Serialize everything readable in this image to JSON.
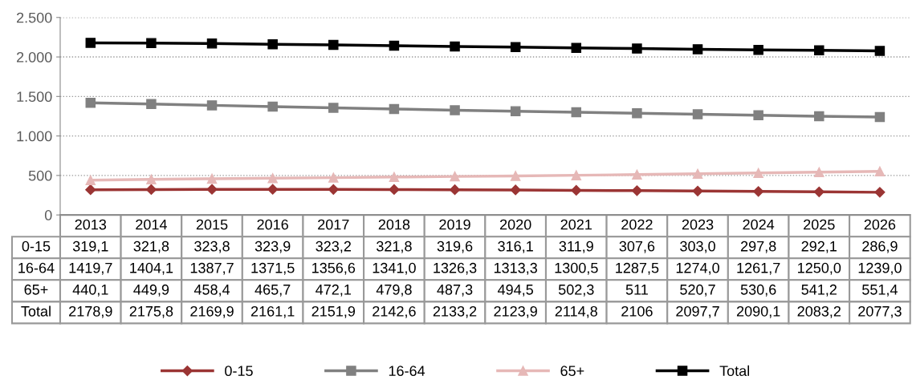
{
  "chart_data": {
    "type": "line",
    "categories": [
      "2013",
      "2014",
      "2015",
      "2016",
      "2017",
      "2018",
      "2019",
      "2020",
      "2021",
      "2022",
      "2023",
      "2024",
      "2025",
      "2026"
    ],
    "series": [
      {
        "name": "0-15",
        "color": "#9b3534",
        "marker": "diamond",
        "values": [
          319.1,
          321.8,
          323.8,
          323.9,
          323.2,
          321.8,
          319.6,
          316.1,
          311.9,
          307.6,
          303.0,
          297.8,
          292.1,
          286.9
        ],
        "value_labels": [
          "319,1",
          "321,8",
          "323,8",
          "323,9",
          "323,2",
          "321,8",
          "319,6",
          "316,1",
          "311,9",
          "307,6",
          "303,0",
          "297,8",
          "292,1",
          "286,9"
        ]
      },
      {
        "name": "16-64",
        "color": "#808080",
        "marker": "square",
        "values": [
          1419.7,
          1404.1,
          1387.7,
          1371.5,
          1356.6,
          1341.0,
          1326.3,
          1313.3,
          1300.5,
          1287.5,
          1274.0,
          1261.7,
          1250.0,
          1239.0
        ],
        "value_labels": [
          "1419,7",
          "1404,1",
          "1387,7",
          "1371,5",
          "1356,6",
          "1341,0",
          "1326,3",
          "1313,3",
          "1300,5",
          "1287,5",
          "1274,0",
          "1261,7",
          "1250,0",
          "1239,0"
        ]
      },
      {
        "name": "65+",
        "color": "#e6b8b7",
        "marker": "triangle",
        "values": [
          440.1,
          449.9,
          458.4,
          465.7,
          472.1,
          479.8,
          487.3,
          494.5,
          502.3,
          511,
          520.7,
          530.6,
          541.2,
          551.4
        ],
        "value_labels": [
          "440,1",
          "449,9",
          "458,4",
          "465,7",
          "472,1",
          "479,8",
          "487,3",
          "494,5",
          "502,3",
          "511",
          "520,7",
          "530,6",
          "541,2",
          "551,4"
        ]
      },
      {
        "name": "Total",
        "color": "#000000",
        "marker": "square",
        "values": [
          2178.9,
          2175.8,
          2169.9,
          2161.1,
          2151.9,
          2142.6,
          2133.2,
          2123.9,
          2114.8,
          2106,
          2097.7,
          2090.1,
          2083.2,
          2077.3
        ],
        "value_labels": [
          "2178,9",
          "2175,8",
          "2169,9",
          "2161,1",
          "2151,9",
          "2142,6",
          "2133,2",
          "2123,9",
          "2114,8",
          "2106",
          "2097,7",
          "2090,1",
          "2083,2",
          "2077,3"
        ]
      }
    ],
    "ylim": [
      0,
      2500
    ],
    "yticks": [
      {
        "value": 0,
        "label": "0"
      },
      {
        "value": 500,
        "label": "500"
      },
      {
        "value": 1000,
        "label": "1.000"
      },
      {
        "value": 1500,
        "label": "1.500"
      },
      {
        "value": 2000,
        "label": "2.000"
      },
      {
        "value": 2500,
        "label": "2.500"
      }
    ],
    "grid": "y",
    "legend": "bottom",
    "line_style": "solid"
  }
}
